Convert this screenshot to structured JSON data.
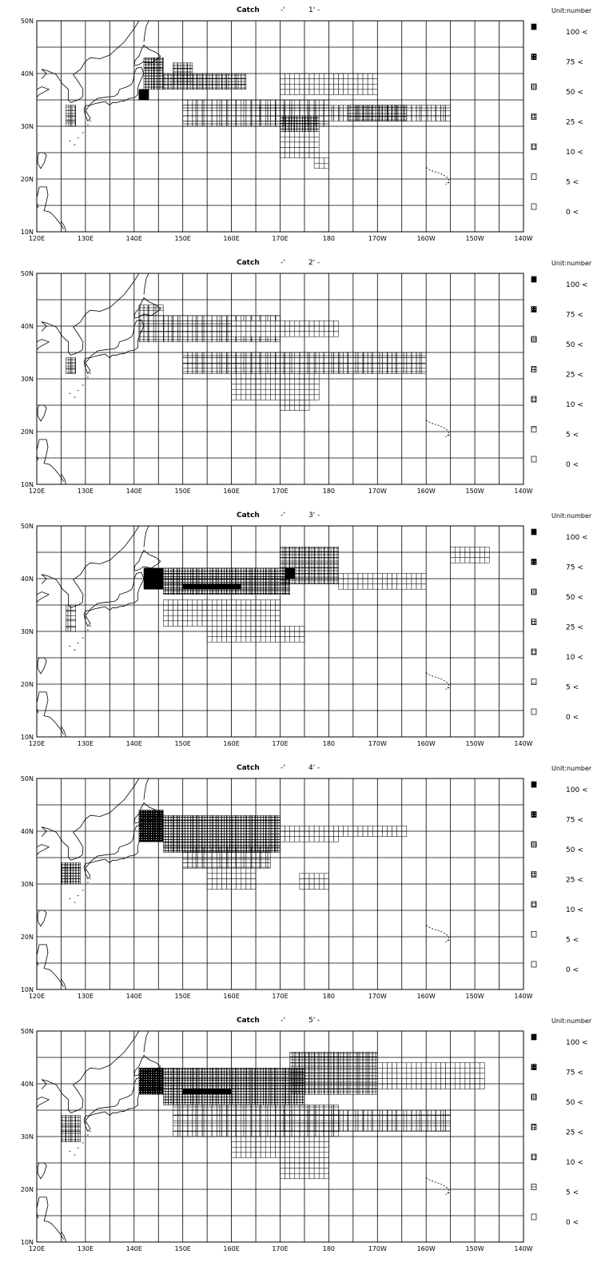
{
  "panels": [
    {
      "title": "Catch",
      "period": "1'",
      "dash_mark": "-'",
      "dash_end": "-"
    },
    {
      "title": "Catch",
      "period": "2'",
      "dash_mark": "-'",
      "dash_end": "-"
    },
    {
      "title": "Catch",
      "period": "3'",
      "dash_mark": "-'",
      "dash_end": "-"
    },
    {
      "title": "Catch",
      "period": "4'",
      "dash_mark": "-'",
      "dash_end": "-"
    },
    {
      "title": "Catch",
      "period": "5'",
      "dash_mark": "-'",
      "dash_end": "-"
    }
  ],
  "unit_label": "Unit:number",
  "x_ticks": [
    "120E",
    "130E",
    "140E",
    "150E",
    "160E",
    "170E",
    "180",
    "170W",
    "160W",
    "150W",
    "140W"
  ],
  "y_ticks": [
    "50N",
    "40N",
    "30N",
    "20N",
    "10N"
  ],
  "legend": [
    {
      "label": "100 <",
      "pattern": "solid"
    },
    {
      "label": "75 <",
      "pattern": "dense"
    },
    {
      "label": "50 <",
      "pattern": "vlines"
    },
    {
      "label": "25 <",
      "pattern": "cross"
    },
    {
      "label": "10 <",
      "pattern": "grid"
    },
    {
      "label": "5 <",
      "pattern": "plus"
    },
    {
      "label": "0 <",
      "pattern": "empty"
    }
  ],
  "map": {
    "lon_range": [
      120,
      220
    ],
    "lat_range": [
      10,
      50
    ],
    "grid_deg": 5,
    "cell_deg": 1,
    "colors": {
      "line": "#000000",
      "background": "#ffffff"
    }
  },
  "catch_cells": [
    {
      "period": "1'",
      "bands": [
        {
          "lat": [
            30,
            34
          ],
          "lon": [
            126,
            128
          ],
          "pattern": "grid"
        },
        {
          "lat": [
            35,
            37
          ],
          "lon": [
            141,
            143
          ],
          "pattern": "solid"
        },
        {
          "lat": [
            37,
            43
          ],
          "lon": [
            142,
            146
          ],
          "pattern": "cross"
        },
        {
          "lat": [
            37,
            40
          ],
          "lon": [
            146,
            163
          ],
          "pattern": "grid"
        },
        {
          "lat": [
            38,
            42
          ],
          "lon": [
            148,
            152
          ],
          "pattern": "grid"
        },
        {
          "lat": [
            30,
            35
          ],
          "lon": [
            150,
            180
          ],
          "pattern": "plus"
        },
        {
          "lat": [
            31,
            34
          ],
          "lon": [
            165,
            205
          ],
          "pattern": "plus"
        },
        {
          "lat": [
            29,
            32
          ],
          "lon": [
            170,
            178
          ],
          "pattern": "cross"
        },
        {
          "lat": [
            24,
            29
          ],
          "lon": [
            170,
            178
          ],
          "pattern": "empty"
        },
        {
          "lat": [
            22,
            24
          ],
          "lon": [
            177,
            180
          ],
          "pattern": "empty"
        },
        {
          "lat": [
            31,
            34
          ],
          "lon": [
            184,
            196
          ],
          "pattern": "grid"
        },
        {
          "lat": [
            36,
            40
          ],
          "lon": [
            170,
            190
          ],
          "pattern": "empty"
        }
      ]
    },
    {
      "period": "2'",
      "bands": [
        {
          "lat": [
            31,
            34
          ],
          "lon": [
            126,
            128
          ],
          "pattern": "grid"
        },
        {
          "lat": [
            37,
            44
          ],
          "lon": [
            141,
            146
          ],
          "pattern": "plus"
        },
        {
          "lat": [
            37,
            42
          ],
          "lon": [
            146,
            170
          ],
          "pattern": "plus"
        },
        {
          "lat": [
            38,
            41
          ],
          "lon": [
            160,
            182
          ],
          "pattern": "empty"
        },
        {
          "lat": [
            31,
            35
          ],
          "lon": [
            150,
            200
          ],
          "pattern": "plus"
        },
        {
          "lat": [
            26,
            31
          ],
          "lon": [
            160,
            178
          ],
          "pattern": "empty"
        },
        {
          "lat": [
            24,
            26
          ],
          "lon": [
            170,
            176
          ],
          "pattern": "empty"
        }
      ]
    },
    {
      "period": "3'",
      "bands": [
        {
          "lat": [
            30,
            35
          ],
          "lon": [
            126,
            128
          ],
          "pattern": "plus"
        },
        {
          "lat": [
            38,
            42
          ],
          "lon": [
            142,
            146
          ],
          "pattern": "solid"
        },
        {
          "lat": [
            37,
            42
          ],
          "lon": [
            146,
            172
          ],
          "pattern": "cross"
        },
        {
          "lat": [
            38,
            39
          ],
          "lon": [
            150,
            162
          ],
          "pattern": "solid"
        },
        {
          "lat": [
            40,
            42
          ],
          "lon": [
            171,
            173
          ],
          "pattern": "solid"
        },
        {
          "lat": [
            39,
            46
          ],
          "lon": [
            170,
            182
          ],
          "pattern": "grid"
        },
        {
          "lat": [
            38,
            41
          ],
          "lon": [
            182,
            200
          ],
          "pattern": "empty"
        },
        {
          "lat": [
            43,
            46
          ],
          "lon": [
            205,
            213
          ],
          "pattern": "empty"
        },
        {
          "lat": [
            31,
            36
          ],
          "lon": [
            146,
            170
          ],
          "pattern": "empty"
        },
        {
          "lat": [
            28,
            31
          ],
          "lon": [
            155,
            175
          ],
          "pattern": "empty"
        }
      ]
    },
    {
      "period": "4'",
      "bands": [
        {
          "lat": [
            30,
            34
          ],
          "lon": [
            125,
            129
          ],
          "pattern": "cross"
        },
        {
          "lat": [
            38,
            44
          ],
          "lon": [
            141,
            146
          ],
          "pattern": "dense"
        },
        {
          "lat": [
            36,
            43
          ],
          "lon": [
            146,
            170
          ],
          "pattern": "cross"
        },
        {
          "lat": [
            33,
            37
          ],
          "lon": [
            150,
            168
          ],
          "pattern": "plus"
        },
        {
          "lat": [
            38,
            41
          ],
          "lon": [
            170,
            182
          ],
          "pattern": "empty"
        },
        {
          "lat": [
            39,
            41
          ],
          "lon": [
            182,
            196
          ],
          "pattern": "empty"
        },
        {
          "lat": [
            29,
            33
          ],
          "lon": [
            155,
            165
          ],
          "pattern": "empty"
        },
        {
          "lat": [
            29,
            32
          ],
          "lon": [
            174,
            180
          ],
          "pattern": "empty"
        }
      ]
    },
    {
      "period": "5'",
      "bands": [
        {
          "lat": [
            29,
            34
          ],
          "lon": [
            125,
            129
          ],
          "pattern": "grid"
        },
        {
          "lat": [
            38,
            43
          ],
          "lon": [
            141,
            146
          ],
          "pattern": "dense"
        },
        {
          "lat": [
            36,
            43
          ],
          "lon": [
            146,
            175
          ],
          "pattern": "cross"
        },
        {
          "lat": [
            38,
            39
          ],
          "lon": [
            150,
            160
          ],
          "pattern": "solid"
        },
        {
          "lat": [
            30,
            36
          ],
          "lon": [
            148,
            182
          ],
          "pattern": "plus"
        },
        {
          "lat": [
            31,
            35
          ],
          "lon": [
            170,
            205
          ],
          "pattern": "plus"
        },
        {
          "lat": [
            26,
            30
          ],
          "lon": [
            160,
            180
          ],
          "pattern": "empty"
        },
        {
          "lat": [
            22,
            26
          ],
          "lon": [
            170,
            180
          ],
          "pattern": "empty"
        },
        {
          "lat": [
            38,
            46
          ],
          "lon": [
            172,
            190
          ],
          "pattern": "grid"
        },
        {
          "lat": [
            39,
            44
          ],
          "lon": [
            190,
            212
          ],
          "pattern": "empty"
        }
      ]
    }
  ]
}
